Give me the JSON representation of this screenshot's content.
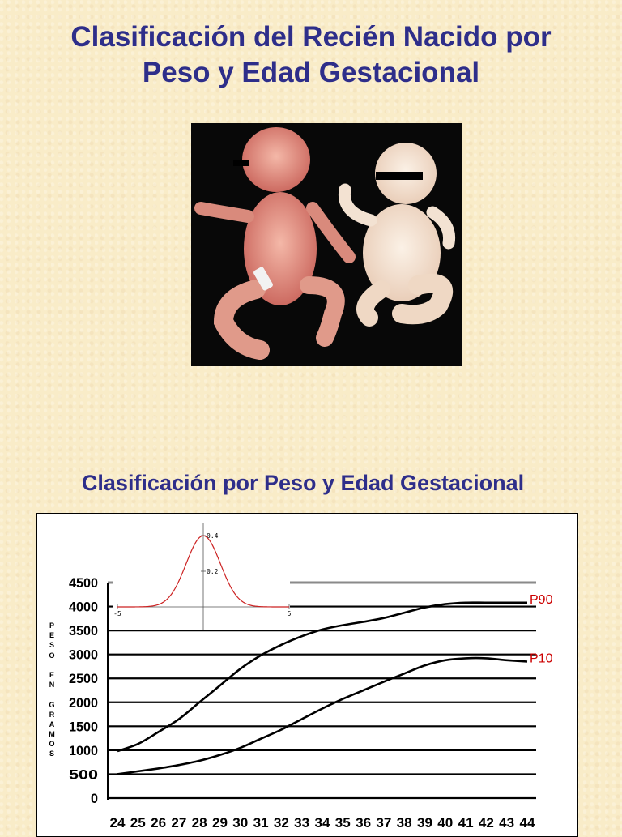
{
  "slide": {
    "title_line1": "Clasificación del Recién Nacido por",
    "title_line2": "Peso y Edad Gestacional",
    "subtitle": "Clasificación por Peso y Edad Gestacional"
  },
  "photo": {
    "description_icon": "newborn-babies-photo"
  },
  "chart_data": {
    "type": "line",
    "title": "",
    "xlabel": "",
    "ylabel": "PESO EN GRAMOS",
    "x": [
      24,
      25,
      26,
      27,
      28,
      29,
      30,
      31,
      32,
      33,
      34,
      35,
      36,
      37,
      38,
      39,
      40,
      41,
      42,
      43,
      44
    ],
    "ylim": [
      0,
      4500
    ],
    "yticks": [
      0,
      500,
      1000,
      1500,
      2000,
      2500,
      3000,
      3500,
      4000,
      4500
    ],
    "grid": true,
    "series": [
      {
        "name": "P90",
        "color": "#000000",
        "label_color": "#cc0000",
        "values": [
          980,
          1130,
          1380,
          1650,
          2000,
          2350,
          2700,
          2980,
          3200,
          3380,
          3520,
          3610,
          3680,
          3760,
          3870,
          3980,
          4050,
          4080,
          4080,
          4080,
          4080
        ]
      },
      {
        "name": "P10",
        "color": "#000000",
        "label_color": "#cc0000",
        "values": [
          500,
          560,
          620,
          690,
          780,
          900,
          1050,
          1240,
          1430,
          1650,
          1870,
          2070,
          2250,
          2430,
          2600,
          2770,
          2880,
          2920,
          2920,
          2880,
          2850
        ]
      }
    ],
    "inset": {
      "type": "line",
      "xlim": [
        -5,
        5
      ],
      "ylim": [
        0,
        0.45
      ],
      "xticks": [
        "-5",
        "5"
      ],
      "yticks": [
        "0.4",
        "0.2"
      ],
      "curve": "normal-distribution",
      "color": "#cc2222"
    }
  }
}
